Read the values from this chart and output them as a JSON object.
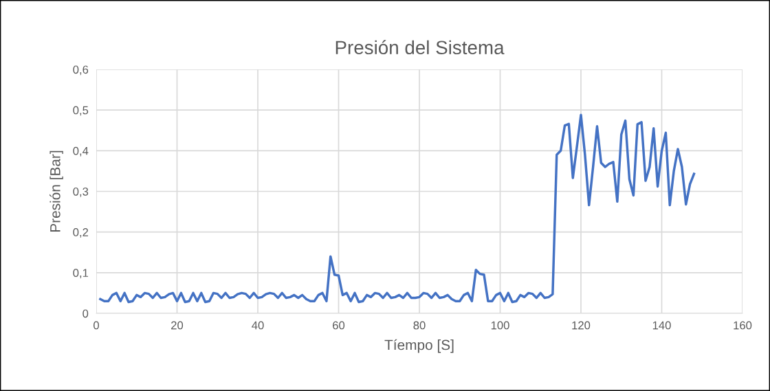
{
  "chart_data": {
    "type": "line",
    "title": "Presión del Sistema",
    "xlabel": "Tíempo [S]",
    "ylabel": "Presión [Bar]",
    "xlim": [
      0,
      160
    ],
    "xticks": [
      0,
      20,
      40,
      60,
      80,
      100,
      120,
      140,
      160
    ],
    "ylim": [
      0,
      0.6
    ],
    "yticks": [
      0,
      {
        "value": 0.1,
        "label": "0,1"
      },
      {
        "value": 0.2,
        "label": "0,2"
      },
      {
        "value": 0.3,
        "label": "0,3"
      },
      {
        "value": 0.4,
        "label": "0,4"
      },
      {
        "value": 0.5,
        "label": "0,5"
      },
      {
        "value": 0.6,
        "label": "0,6"
      }
    ],
    "grid": true,
    "marker": "none",
    "line_style": "solid",
    "x": [
      1,
      2,
      3,
      4,
      5,
      6,
      7,
      8,
      9,
      10,
      11,
      12,
      13,
      14,
      15,
      16,
      17,
      18,
      19,
      20,
      21,
      22,
      23,
      24,
      25,
      26,
      27,
      28,
      29,
      30,
      31,
      32,
      33,
      34,
      35,
      36,
      37,
      38,
      39,
      40,
      41,
      42,
      43,
      44,
      45,
      46,
      47,
      48,
      49,
      50,
      51,
      52,
      53,
      54,
      55,
      56,
      57,
      58,
      59,
      60,
      61,
      62,
      63,
      64,
      65,
      66,
      67,
      68,
      69,
      70,
      71,
      72,
      73,
      74,
      75,
      76,
      77,
      78,
      79,
      80,
      81,
      82,
      83,
      84,
      85,
      86,
      87,
      88,
      89,
      90,
      91,
      92,
      93,
      94,
      95,
      96,
      97,
      98,
      99,
      100,
      101,
      102,
      103,
      104,
      105,
      106,
      107,
      108,
      109,
      110,
      111,
      112,
      113,
      114,
      115,
      116,
      117,
      118,
      119,
      120,
      121,
      122,
      123,
      124,
      125,
      126,
      127,
      128,
      129,
      130,
      131,
      132,
      133,
      134,
      135,
      136,
      137,
      138,
      139,
      140,
      141,
      142,
      143,
      144,
      145,
      146,
      147,
      148
    ],
    "series": [
      {
        "color": "#4472c4",
        "values": [
          0.035,
          0.03,
          0.03,
          0.045,
          0.05,
          0.03,
          0.05,
          0.028,
          0.03,
          0.045,
          0.04,
          0.05,
          0.048,
          0.038,
          0.05,
          0.038,
          0.04,
          0.047,
          0.05,
          0.03,
          0.05,
          0.028,
          0.03,
          0.05,
          0.03,
          0.05,
          0.028,
          0.03,
          0.05,
          0.048,
          0.038,
          0.05,
          0.038,
          0.04,
          0.047,
          0.05,
          0.048,
          0.038,
          0.05,
          0.038,
          0.04,
          0.047,
          0.05,
          0.048,
          0.038,
          0.05,
          0.038,
          0.04,
          0.045,
          0.038,
          0.045,
          0.035,
          0.03,
          0.03,
          0.045,
          0.05,
          0.03,
          0.14,
          0.095,
          0.093,
          0.045,
          0.05,
          0.03,
          0.05,
          0.028,
          0.03,
          0.045,
          0.04,
          0.05,
          0.048,
          0.038,
          0.05,
          0.038,
          0.04,
          0.045,
          0.038,
          0.05,
          0.038,
          0.038,
          0.04,
          0.05,
          0.048,
          0.038,
          0.05,
          0.038,
          0.04,
          0.045,
          0.035,
          0.03,
          0.03,
          0.045,
          0.05,
          0.03,
          0.107,
          0.097,
          0.095,
          0.03,
          0.03,
          0.045,
          0.05,
          0.03,
          0.05,
          0.028,
          0.03,
          0.045,
          0.04,
          0.05,
          0.048,
          0.038,
          0.05,
          0.038,
          0.04,
          0.047,
          0.39,
          0.4,
          0.462,
          0.466,
          0.333,
          0.41,
          0.488,
          0.39,
          0.266,
          0.36,
          0.46,
          0.37,
          0.36,
          0.368,
          0.372,
          0.275,
          0.44,
          0.474,
          0.33,
          0.29,
          0.465,
          0.47,
          0.326,
          0.36,
          0.455,
          0.312,
          0.4,
          0.444,
          0.266,
          0.35,
          0.404,
          0.36,
          0.268,
          0.318,
          0.343
        ]
      }
    ]
  }
}
